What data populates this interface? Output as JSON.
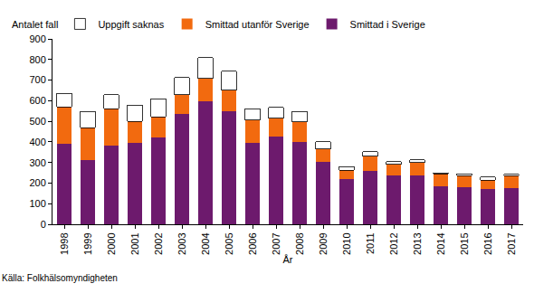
{
  "chart_data": {
    "type": "bar",
    "stacked": true,
    "y_label": "Antalet fall",
    "x_label": "År",
    "annotations": [
      "Källa: Folkhälsomyndigheten"
    ],
    "categories": [
      "1998",
      "1999",
      "2000",
      "2001",
      "2002",
      "2003",
      "2004",
      "2005",
      "2006",
      "2007",
      "2008",
      "2009",
      "2010",
      "2011",
      "2012",
      "2013",
      "2014",
      "2015",
      "2016",
      "2017"
    ],
    "series": [
      {
        "name": "Smittad i Sverige",
        "color": "#6d1a6d",
        "values": [
          390,
          312,
          383,
          397,
          420,
          535,
          595,
          548,
          395,
          428,
          398,
          303,
          220,
          258,
          238,
          235,
          183,
          180,
          170,
          175
        ]
      },
      {
        "name": "Smittad utanför Sverige",
        "color": "#f26a0f",
        "values": [
          180,
          156,
          177,
          103,
          102,
          95,
          113,
          102,
          110,
          87,
          100,
          62,
          42,
          72,
          52,
          65,
          62,
          55,
          45,
          60
        ]
      },
      {
        "name": "Uppgift saknas",
        "color": "#ffffff",
        "values": [
          65,
          80,
          70,
          78,
          88,
          82,
          102,
          93,
          55,
          53,
          50,
          35,
          18,
          22,
          15,
          12,
          5,
          10,
          15,
          7
        ]
      }
    ],
    "ylim": [
      0,
      900
    ],
    "yticks": [
      0,
      100,
      200,
      300,
      400,
      500,
      600,
      700,
      800,
      900
    ],
    "grid": false,
    "legend": "top"
  }
}
